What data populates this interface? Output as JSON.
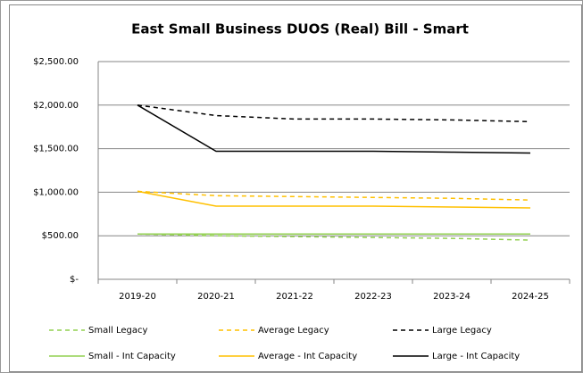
{
  "chart_data": {
    "type": "line",
    "title": "East Small Business DUOS (Real) Bill - Smart",
    "categories": [
      "2019-20",
      "2020-21",
      "2021-22",
      "2022-23",
      "2023-24",
      "2024-25"
    ],
    "series": [
      {
        "name": "Small Legacy",
        "color": "#92d050",
        "dashed": true,
        "values": [
          520,
          500,
          490,
          480,
          470,
          450
        ]
      },
      {
        "name": "Average Legacy",
        "color": "#ffc000",
        "dashed": true,
        "values": [
          1010,
          960,
          950,
          940,
          930,
          910
        ]
      },
      {
        "name": "Large Legacy",
        "color": "#000000",
        "dashed": true,
        "values": [
          2000,
          1880,
          1840,
          1840,
          1830,
          1810
        ]
      },
      {
        "name": "Small - Int Capacity",
        "color": "#92d050",
        "dashed": false,
        "values": [
          520,
          520,
          520,
          520,
          520,
          520
        ]
      },
      {
        "name": "Average - Int Capacity",
        "color": "#ffc000",
        "dashed": false,
        "values": [
          1010,
          840,
          840,
          840,
          830,
          820
        ]
      },
      {
        "name": "Large - Int Capacity",
        "color": "#000000",
        "dashed": false,
        "values": [
          2000,
          1470,
          1470,
          1470,
          1460,
          1450
        ]
      }
    ],
    "ylim": [
      0,
      2500
    ],
    "yticks": [
      {
        "value": 0,
        "label": "$-"
      },
      {
        "value": 500,
        "label": "$500.00"
      },
      {
        "value": 1000,
        "label": "$1,000.00"
      },
      {
        "value": 1500,
        "label": "$1,500.00"
      },
      {
        "value": 2000,
        "label": "$2,000.00"
      },
      {
        "value": 2500,
        "label": "$2,500.00"
      }
    ],
    "grid": true,
    "legend": "bottom"
  }
}
